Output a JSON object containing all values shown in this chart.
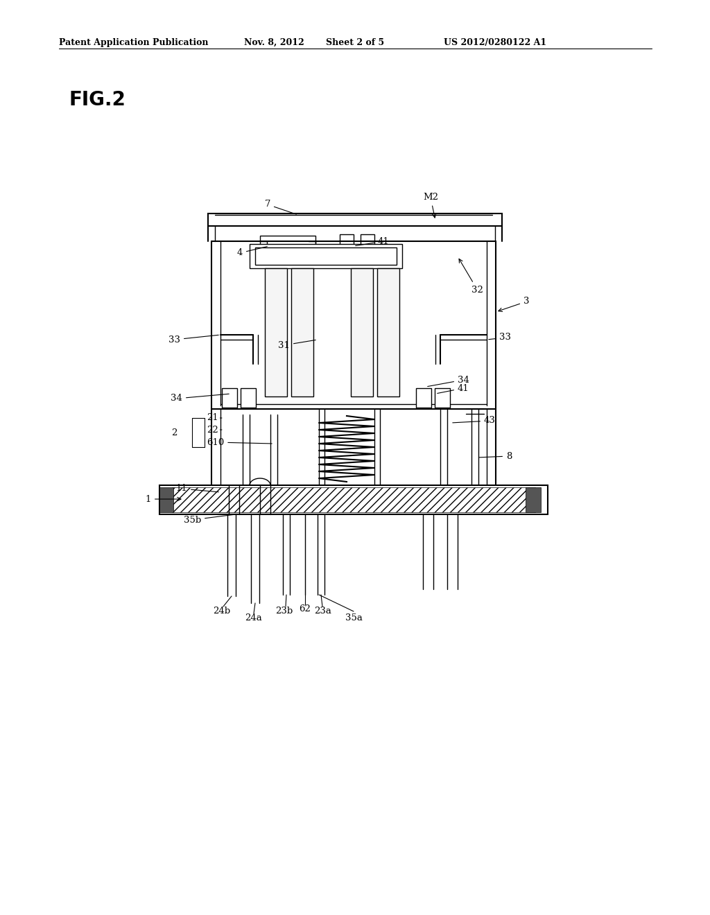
{
  "bg_color": "#ffffff",
  "line_color": "#000000",
  "header_text": "Patent Application Publication",
  "header_date": "Nov. 8, 2012",
  "header_sheet": "Sheet 2 of 5",
  "header_patent": "US 2012/0280122 A1",
  "fig_label": "FIG.2"
}
